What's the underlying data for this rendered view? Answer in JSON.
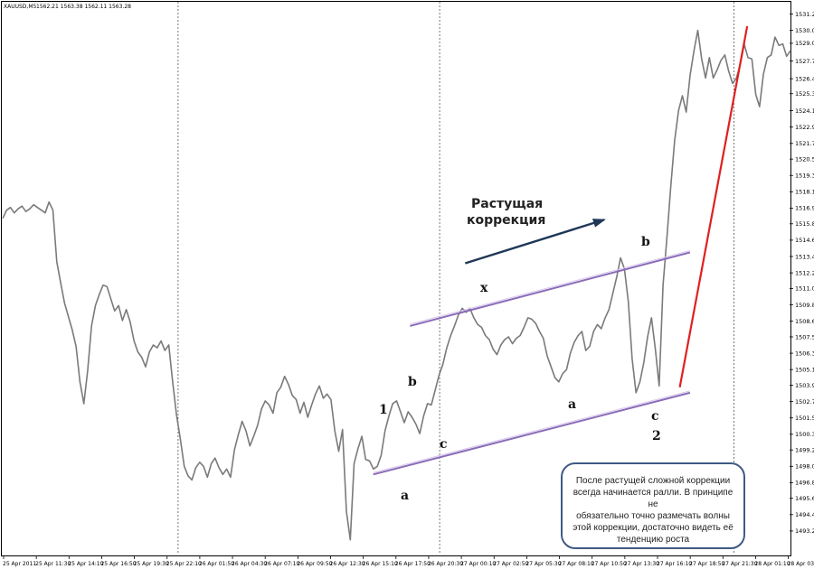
{
  "header": {
    "symbol": "XAUUSD,M5",
    "ohlc": "1562.21 1563.38 1562.11 1563.28"
  },
  "colors": {
    "price": "#7a7a7a",
    "channel": "#8a6bb8",
    "trendline": "#e02020",
    "arrow": "#1f3757",
    "grid": "#555555",
    "axis": "#000000"
  },
  "annotation": {
    "line1": "Растущая",
    "line2": "коррекция"
  },
  "note": {
    "lines": [
      "После растущей сложной коррекции",
      "всегда начинается ралли. В принципе не",
      "обязательно точно размечать волны",
      "этой коррекции, достаточно видеть её",
      "тенденцию роста"
    ]
  },
  "wave_labels": {
    "one": "1",
    "two": "2",
    "a1": "a",
    "b1": "b",
    "c1": "c",
    "x": "x",
    "a2": "a",
    "b2": "b",
    "c2": "c"
  },
  "chart_data": {
    "type": "line",
    "title": "XAUUSD,M5",
    "xlabel": "",
    "ylabel": "",
    "ylim": [
      1492.45,
      1531.2
    ],
    "y_ticks": [
      "1531.20",
      "1530.00",
      "1529.05",
      "1527.75",
      "1526.45",
      "1525.35",
      "1524.10",
      "1522.90",
      "1521.70",
      "1520.55",
      "1519.35",
      "1518.15",
      "1516.95",
      "1515.80",
      "1514.60",
      "1513.40",
      "1512.20",
      "1511.05",
      "1509.85",
      "1508.65",
      "1507.50",
      "1506.30",
      "1505.10",
      "1503.95",
      "1502.75",
      "1501.55",
      "1500.35",
      "1499.20",
      "1498.00",
      "1496.80",
      "1495.65",
      "1494.45",
      "1493.25"
    ],
    "x_ticks": [
      "25 Apr 2011",
      "25 Apr 11:30",
      "25 Apr 14:10",
      "25 Apr 16:50",
      "25 Apr 19:30",
      "25 Apr 22:10",
      "26 Apr 01:50",
      "26 Apr 04:30",
      "26 Apr 07:10",
      "26 Apr 09:50",
      "26 Apr 12:30",
      "26 Apr 15:10",
      "26 Apr 17:50",
      "26 Apr 20:30",
      "27 Apr 00:10",
      "27 Apr 02:50",
      "27 Apr 05:30",
      "27 Apr 08:10",
      "27 Apr 10:50",
      "27 Apr 13:30",
      "27 Apr 16:10",
      "27 Apr 18:50",
      "27 Apr 21:30",
      "28 Apr 01:10",
      "28 Apr 03:50"
    ],
    "series": [
      {
        "values": [
          1516.2,
          1516.8,
          1517.0,
          1516.6,
          1516.9,
          1517.1,
          1516.7,
          1516.9,
          1517.2,
          1517.0,
          1516.8,
          1516.6,
          1517.4,
          1516.8,
          1513.0,
          1511.5,
          1510.0,
          1509.0,
          1508.0,
          1506.8,
          1504.2,
          1502.6,
          1505.0,
          1508.3,
          1509.8,
          1510.6,
          1511.3,
          1511.2,
          1510.3,
          1509.4,
          1509.8,
          1508.7,
          1509.5,
          1508.6,
          1507.2,
          1506.4,
          1506.0,
          1505.3,
          1506.4,
          1506.9,
          1506.7,
          1507.2,
          1506.5,
          1506.9,
          1504.2,
          1501.8,
          1500.0,
          1498.0,
          1497.3,
          1497.0,
          1497.9,
          1498.3,
          1498.0,
          1497.2,
          1498.2,
          1498.6,
          1497.9,
          1497.4,
          1497.8,
          1497.2,
          1499.2,
          1500.3,
          1501.3,
          1500.6,
          1499.5,
          1500.2,
          1501.0,
          1502.2,
          1502.8,
          1502.5,
          1501.9,
          1503.4,
          1503.8,
          1504.6,
          1504.0,
          1503.2,
          1502.9,
          1501.9,
          1502.7,
          1501.6,
          1502.5,
          1503.3,
          1503.9,
          1503.0,
          1503.3,
          1502.9,
          1500.6,
          1499.1,
          1500.7,
          1494.7,
          1492.6,
          1498.2,
          1499.3,
          1500.2,
          1498.5,
          1498.4,
          1497.8,
          1498.0,
          1498.8,
          1500.6,
          1501.7,
          1502.6,
          1502.8,
          1502.0,
          1501.2,
          1502.0,
          1501.6,
          1501.1,
          1500.4,
          1501.7,
          1502.6,
          1502.5,
          1503.6,
          1504.7,
          1505.5,
          1506.7,
          1507.6,
          1508.3,
          1509.1,
          1509.6,
          1509.3,
          1509.6,
          1508.9,
          1508.4,
          1508.2,
          1507.6,
          1507.3,
          1506.6,
          1506.2,
          1506.9,
          1507.3,
          1507.5,
          1507.0,
          1507.4,
          1507.6,
          1508.2,
          1508.9,
          1508.8,
          1508.5,
          1507.9,
          1507.4,
          1506.1,
          1505.3,
          1504.5,
          1504.2,
          1504.8,
          1505.1,
          1506.3,
          1507.1,
          1507.6,
          1507.9,
          1506.5,
          1506.8,
          1507.9,
          1508.4,
          1508.1,
          1508.9,
          1509.5,
          1510.7,
          1511.9,
          1513.3,
          1512.5,
          1510.1,
          1505.9,
          1503.4,
          1504.2,
          1505.6,
          1507.5,
          1508.9,
          1506.6,
          1503.9,
          1511.3,
          1514.8,
          1518.5,
          1521.9,
          1524.1,
          1525.2,
          1524.0,
          1526.7,
          1528.5,
          1530.0,
          1527.9,
          1526.5,
          1528.0,
          1526.5,
          1527.1,
          1527.8,
          1528.2,
          1527.0,
          1526.1,
          1526.5,
          1527.5,
          1529.0,
          1528.0,
          1527.9,
          1525.3,
          1524.4,
          1526.8,
          1528.0,
          1528.2,
          1529.5,
          1528.9,
          1529.0,
          1528.1,
          1528.5
        ]
      }
    ],
    "overlays": {
      "upper_channel": {
        "from": [
          "26 Apr 18:50",
          1508.3
        ],
        "to": [
          "27 Apr 18:40",
          1513.7
        ]
      },
      "lower_channel": {
        "from": [
          "26 Apr 15:50",
          1497.4
        ],
        "to": [
          "27 Apr 18:40",
          1503.4
        ]
      },
      "red_trendline": {
        "from": [
          "27 Apr 17:50",
          1503.8
        ],
        "to": [
          "27 Apr 23:20",
          1530.3
        ]
      },
      "arrow": {
        "from": [
          "27 Apr 00:20",
          1512.9
        ],
        "to": [
          "27 Apr 11:40",
          1516.1
        ]
      }
    }
  }
}
